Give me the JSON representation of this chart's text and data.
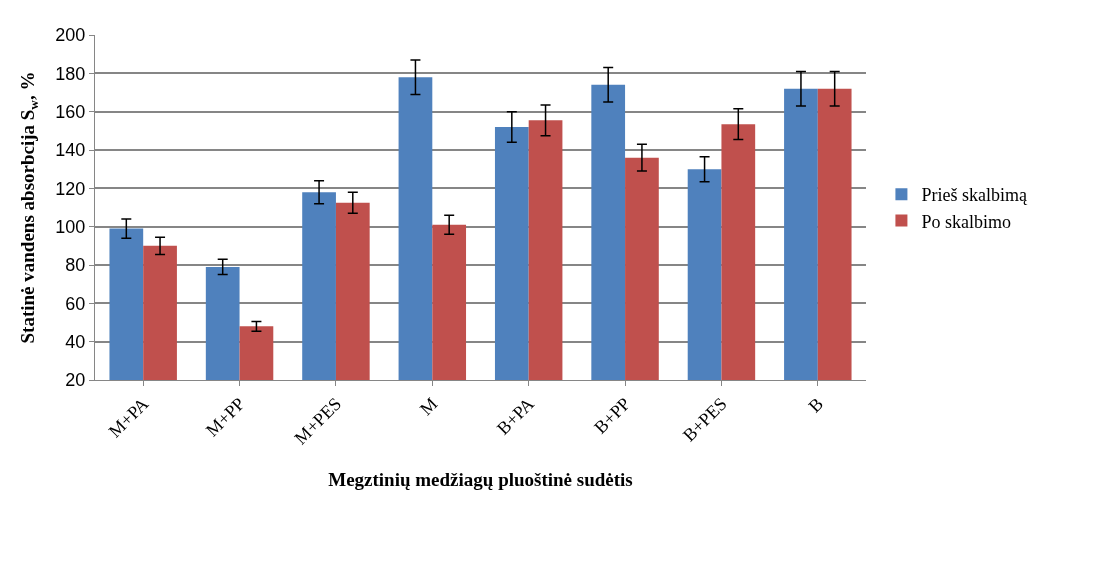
{
  "chart_data": {
    "type": "bar",
    "xlabel": "Megztinių medžiagų pluoštinė sudėtis",
    "ylabel": "Statinė vandens absorbcija S$_{w}$, %",
    "categories": [
      "M+PA",
      "M+PP",
      "M+PES",
      "M",
      "B+PA",
      "B+PP",
      "B+PES",
      "B"
    ],
    "series": [
      {
        "name": "Prieš skalbimą",
        "color": "#4f81bd",
        "values": [
          99,
          79,
          118,
          178,
          152,
          174,
          130,
          172
        ],
        "errors": [
          5,
          4,
          6,
          9,
          8,
          9,
          6.5,
          9
        ]
      },
      {
        "name": "Po skalbimo",
        "color": "#c0504d",
        "values": [
          90,
          48,
          112.5,
          101,
          155.5,
          136,
          153.5,
          172
        ],
        "errors": [
          4.5,
          2.5,
          5.5,
          5,
          8,
          7,
          8,
          9
        ]
      }
    ],
    "ylim": [
      20,
      200
    ],
    "yticks": [
      20,
      40,
      60,
      80,
      100,
      120,
      140,
      160,
      180,
      200
    ],
    "grid": "y",
    "legend": "right"
  }
}
